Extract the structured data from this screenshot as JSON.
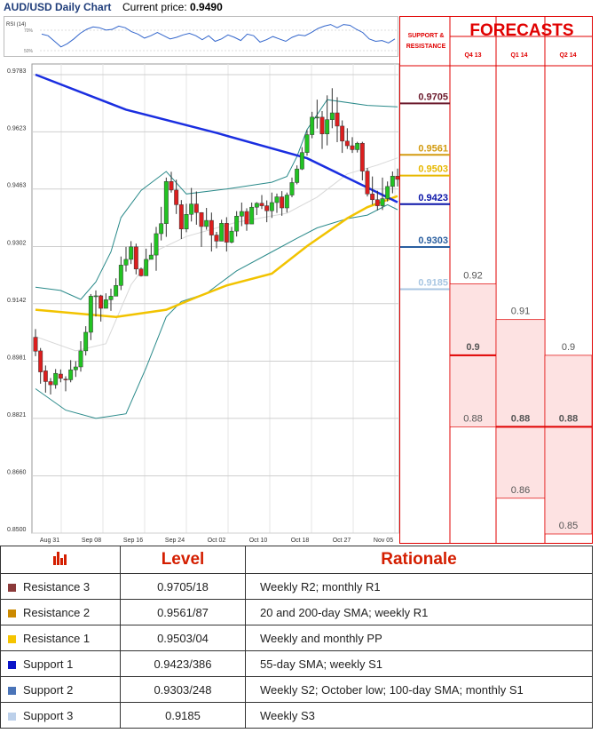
{
  "header": {
    "title": "AUD/USD Daily Chart",
    "price_label": "Current price:",
    "price": "0.9490"
  },
  "rsi": {
    "label": "RSI (14)",
    "level_high": "70%",
    "level_low": "50%"
  },
  "colors": {
    "up": "#22c322",
    "down": "#dd1e1e",
    "sma200": "#1a2ee0",
    "sma55": "#f2c300",
    "bands": "#2a8a8a",
    "forecast_red": "#e00000",
    "forecast_fill": "#fde2e2"
  },
  "chart_data": {
    "type": "candlestick",
    "y_ticks": [
      "0.9783",
      "0.9623",
      "0.9463",
      "0.9302",
      "0.9142",
      "0.8981",
      "0.8821",
      "0.8660",
      "0.8500"
    ],
    "x_ticks": [
      "Aug 31",
      "Sep 08",
      "Sep 16",
      "Sep 24",
      "Oct 02",
      "Oct 10",
      "Oct 18",
      "Oct 27",
      "Nov 05"
    ],
    "ylim": [
      0.85,
      0.9783
    ],
    "candles": [
      [
        0.9048,
        0.9009,
        0.9071,
        0.8995
      ],
      [
        0.901,
        0.8951,
        0.9018,
        0.8918
      ],
      [
        0.8954,
        0.8924,
        0.8969,
        0.8893
      ],
      [
        0.8924,
        0.8915,
        0.8934,
        0.8888
      ],
      [
        0.8915,
        0.8947,
        0.8959,
        0.8904
      ],
      [
        0.8945,
        0.8933,
        0.8958,
        0.8922
      ],
      [
        0.8931,
        0.8929,
        0.8939,
        0.8897
      ],
      [
        0.8929,
        0.8957,
        0.8984,
        0.8922
      ],
      [
        0.8957,
        0.8965,
        0.8981,
        0.8937
      ],
      [
        0.8965,
        0.901,
        0.9037,
        0.8952
      ],
      [
        0.901,
        0.9062,
        0.9079,
        0.8997
      ],
      [
        0.9062,
        0.9163,
        0.9169,
        0.904
      ],
      [
        0.9163,
        0.9164,
        0.9179,
        0.9106
      ],
      [
        0.9164,
        0.9129,
        0.9167,
        0.9092
      ],
      [
        0.9129,
        0.9153,
        0.9171,
        0.9132
      ],
      [
        0.9153,
        0.9163,
        0.9184,
        0.9122
      ],
      [
        0.9163,
        0.9193,
        0.9213,
        0.9164
      ],
      [
        0.9193,
        0.925,
        0.9274,
        0.918
      ],
      [
        0.925,
        0.9266,
        0.9301,
        0.9232
      ],
      [
        0.9266,
        0.9301,
        0.9317,
        0.9253
      ],
      [
        0.9301,
        0.9239,
        0.931,
        0.9224
      ],
      [
        0.9239,
        0.922,
        0.9243,
        0.9218
      ],
      [
        0.922,
        0.9266,
        0.9296,
        0.9238
      ],
      [
        0.9266,
        0.9278,
        0.9312,
        0.9268
      ],
      [
        0.9278,
        0.9338,
        0.9357,
        0.9234
      ],
      [
        0.9338,
        0.9366,
        0.9413,
        0.9319
      ],
      [
        0.9366,
        0.9484,
        0.9495,
        0.9329
      ],
      [
        0.9484,
        0.946,
        0.9511,
        0.9453
      ],
      [
        0.946,
        0.9419,
        0.9489,
        0.9393
      ],
      [
        0.9419,
        0.9351,
        0.9432,
        0.9323
      ],
      [
        0.9351,
        0.9392,
        0.9422,
        0.9342
      ],
      [
        0.9392,
        0.9421,
        0.9466,
        0.9372
      ],
      [
        0.9421,
        0.9397,
        0.9456,
        0.9363
      ],
      [
        0.9397,
        0.9358,
        0.9398,
        0.9301
      ],
      [
        0.9358,
        0.9375,
        0.941,
        0.9349
      ],
      [
        0.9375,
        0.9334,
        0.9397,
        0.9288
      ],
      [
        0.9334,
        0.9317,
        0.9343,
        0.9297
      ],
      [
        0.9317,
        0.9367,
        0.9377,
        0.9317
      ],
      [
        0.9367,
        0.9314,
        0.9384,
        0.9288
      ],
      [
        0.9314,
        0.9345,
        0.9357,
        0.9311
      ],
      [
        0.9345,
        0.9387,
        0.9401,
        0.933
      ],
      [
        0.9387,
        0.94,
        0.9425,
        0.9359
      ],
      [
        0.94,
        0.9365,
        0.9409,
        0.9346
      ],
      [
        0.9365,
        0.9412,
        0.9425,
        0.9376
      ],
      [
        0.9412,
        0.9423,
        0.9426,
        0.939
      ],
      [
        0.9423,
        0.9416,
        0.9446,
        0.9407
      ],
      [
        0.9416,
        0.9402,
        0.9431,
        0.937
      ],
      [
        0.9402,
        0.9425,
        0.9453,
        0.9382
      ],
      [
        0.9425,
        0.9441,
        0.945,
        0.9396
      ],
      [
        0.9441,
        0.941,
        0.9457,
        0.9388
      ],
      [
        0.941,
        0.9446,
        0.9453,
        0.9397
      ],
      [
        0.9446,
        0.9481,
        0.9495,
        0.944
      ],
      [
        0.9481,
        0.9519,
        0.9529,
        0.9476
      ],
      [
        0.9519,
        0.9565,
        0.958,
        0.9516
      ],
      [
        0.9565,
        0.9615,
        0.9628,
        0.9556
      ],
      [
        0.9615,
        0.9664,
        0.9679,
        0.9605
      ],
      [
        0.9664,
        0.9664,
        0.9713,
        0.9632
      ],
      [
        0.9664,
        0.9617,
        0.9681,
        0.9575
      ],
      [
        0.9617,
        0.9657,
        0.9725,
        0.9585
      ],
      [
        0.9657,
        0.9676,
        0.9745,
        0.9633
      ],
      [
        0.9676,
        0.9639,
        0.972,
        0.9594
      ],
      [
        0.9639,
        0.9597,
        0.9655,
        0.9564
      ],
      [
        0.9597,
        0.9584,
        0.9633,
        0.9575
      ],
      [
        0.9584,
        0.9573,
        0.9608,
        0.9564
      ],
      [
        0.9573,
        0.9591,
        0.9595,
        0.9565
      ],
      [
        0.9591,
        0.9513,
        0.9595,
        0.9487
      ],
      [
        0.9513,
        0.9449,
        0.9522,
        0.9442
      ],
      [
        0.9449,
        0.9433,
        0.9498,
        0.9419
      ],
      [
        0.9433,
        0.9416,
        0.9458,
        0.9403
      ],
      [
        0.9416,
        0.9436,
        0.9495,
        0.9404
      ],
      [
        0.9436,
        0.947,
        0.9484,
        0.9428
      ],
      [
        0.947,
        0.9499,
        0.9512,
        0.9451
      ],
      [
        0.9499,
        0.949,
        0.952,
        0.947
      ]
    ],
    "sma200": [
      [
        0,
        0.9783
      ],
      [
        18,
        0.9685
      ],
      [
        36,
        0.962
      ],
      [
        54,
        0.9549
      ],
      [
        72,
        0.9426
      ]
    ],
    "sma55": [
      [
        0,
        0.9125
      ],
      [
        16,
        0.9105
      ],
      [
        26,
        0.9125
      ],
      [
        32,
        0.916
      ],
      [
        38,
        0.9193
      ],
      [
        47,
        0.9226
      ],
      [
        54,
        0.9303
      ],
      [
        62,
        0.9381
      ],
      [
        66,
        0.9412
      ],
      [
        72,
        0.9443
      ]
    ],
    "band_upper": [
      [
        0,
        0.9188
      ],
      [
        5,
        0.9179
      ],
      [
        9,
        0.9154
      ],
      [
        12,
        0.9203
      ],
      [
        15,
        0.9287
      ],
      [
        17,
        0.9383
      ],
      [
        21,
        0.9459
      ],
      [
        26,
        0.9512
      ],
      [
        30,
        0.9449
      ],
      [
        38,
        0.9463
      ],
      [
        47,
        0.9482
      ],
      [
        50,
        0.9498
      ],
      [
        52,
        0.9554
      ],
      [
        54,
        0.9629
      ],
      [
        58,
        0.9713
      ],
      [
        66,
        0.9697
      ],
      [
        72,
        0.9693
      ]
    ],
    "band_lower": [
      [
        0,
        0.8904
      ],
      [
        6,
        0.8844
      ],
      [
        12,
        0.8821
      ],
      [
        18,
        0.8834
      ],
      [
        22,
        0.8963
      ],
      [
        26,
        0.9105
      ],
      [
        29,
        0.9148
      ],
      [
        34,
        0.9171
      ],
      [
        40,
        0.9234
      ],
      [
        47,
        0.9287
      ],
      [
        52,
        0.9325
      ],
      [
        56,
        0.9354
      ],
      [
        62,
        0.938
      ],
      [
        66,
        0.939
      ],
      [
        70,
        0.9419
      ],
      [
        72,
        0.9405
      ]
    ],
    "band_mid": [
      [
        0,
        0.905
      ],
      [
        8,
        0.901
      ],
      [
        14,
        0.903
      ],
      [
        19,
        0.9195
      ],
      [
        24,
        0.929
      ],
      [
        30,
        0.933
      ],
      [
        40,
        0.937
      ],
      [
        50,
        0.9395
      ],
      [
        56,
        0.944
      ],
      [
        62,
        0.9505
      ],
      [
        68,
        0.953
      ],
      [
        72,
        0.955
      ]
    ],
    "rsi_values": [
      64,
      62,
      55,
      48,
      52,
      58,
      65,
      70,
      73,
      72,
      69,
      70,
      74,
      72,
      67,
      64,
      59,
      62,
      66,
      62,
      58,
      60,
      63,
      65,
      62,
      57,
      62,
      55,
      58,
      63,
      60,
      56,
      64,
      62,
      54,
      57,
      61,
      58,
      55,
      60,
      63,
      62,
      66,
      71,
      74,
      76,
      72,
      76,
      75,
      70,
      66,
      58,
      55,
      56,
      53,
      58
    ]
  },
  "levels": [
    {
      "value": 0.9705,
      "label": "0.9705",
      "color": "#6b1a2c"
    },
    {
      "value": 0.9561,
      "label": "0.9561",
      "color": "#d39b10"
    },
    {
      "value": 0.9503,
      "label": "0.9503",
      "color": "#e7b800"
    },
    {
      "value": 0.9423,
      "label": "0.9423",
      "color": "#0a14a8"
    },
    {
      "value": 0.9303,
      "label": "0.9303",
      "color": "#2a5fa0"
    },
    {
      "value": 0.9185,
      "label": "0.9185",
      "color": "#a8c6e2"
    }
  ],
  "forecast": {
    "sr_title_line1": "SUPPORT &",
    "sr_title_line2": "RESISTANCE",
    "title": "FORECASTS",
    "quarters": [
      {
        "label": "Q4 13",
        "high": 0.92,
        "mid": 0.9,
        "low": 0.88,
        "high_label": "0.92",
        "mid_label": "0.9",
        "low_label": "0.88"
      },
      {
        "label": "Q1 14",
        "high": 0.91,
        "mid": 0.88,
        "low": 0.86,
        "high_label": "0.91",
        "mid_label": "0.88",
        "low_label": "0.86"
      },
      {
        "label": "Q2 14",
        "high": 0.9,
        "mid": 0.88,
        "low": 0.85,
        "high_label": "0.9",
        "mid_label": "0.88",
        "low_label": "0.85"
      }
    ]
  },
  "table": {
    "headers": [
      "Level",
      "Rationale"
    ],
    "rows": [
      {
        "name": "Resistance 3",
        "level": "0.9705/18",
        "rationale": "Weekly R2; monthly R1",
        "color": "#8b3a3a"
      },
      {
        "name": "Resistance 2",
        "level": "0.9561/87",
        "rationale": "20 and 200-day SMA; weekly R1",
        "color": "#cc8a00"
      },
      {
        "name": "Resistance 1",
        "level": "0.9503/04",
        "rationale": "Weekly and monthly PP",
        "color": "#f5c400"
      },
      {
        "name": "Support 1",
        "level": "0.9423/386",
        "rationale": "55-day SMA; weekly S1",
        "color": "#0a14c8"
      },
      {
        "name": "Support 2",
        "level": "0.9303/248",
        "rationale": "Weekly S2; October low; 100-day SMA; monthly S1",
        "color": "#4a74b8"
      },
      {
        "name": "Support 3",
        "level": "0.9185",
        "rationale": "Weekly S3",
        "color": "#bcd0ea"
      }
    ]
  }
}
